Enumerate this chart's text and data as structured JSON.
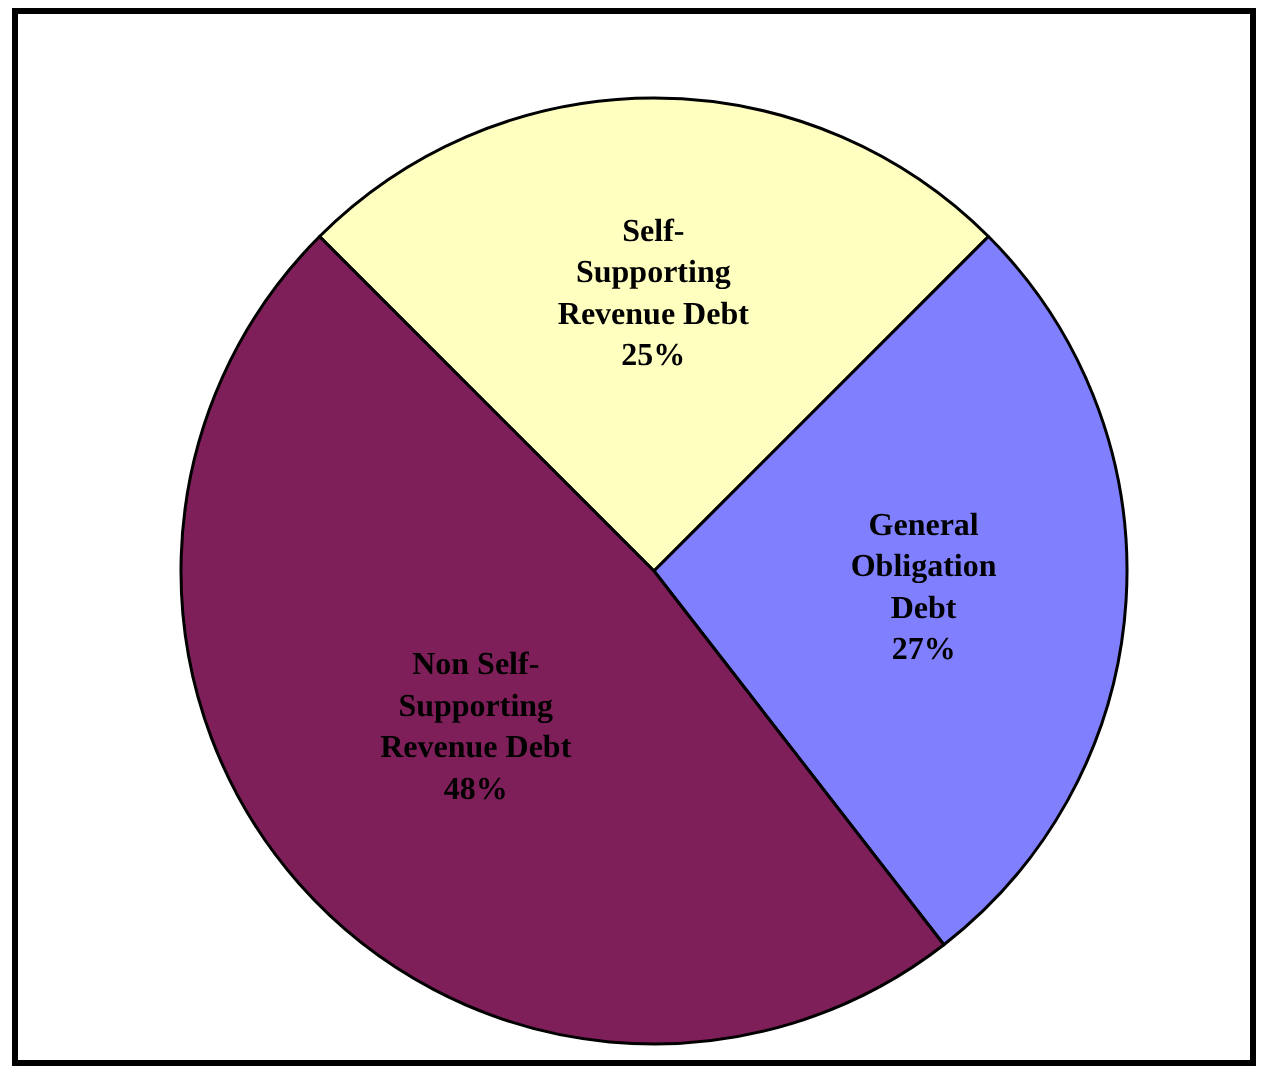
{
  "chart_data": {
    "type": "pie",
    "categories": [
      "Self-Supporting Revenue Debt",
      "General Obligation Debt",
      "Non Self-Supporting Revenue Debt"
    ],
    "values": [
      25,
      27,
      48
    ],
    "colors": [
      "#ffffc0",
      "#8080ff",
      "#7f1f5a"
    ],
    "value_labels": [
      "25%",
      "27%",
      "48%"
    ],
    "legend": false
  }
}
